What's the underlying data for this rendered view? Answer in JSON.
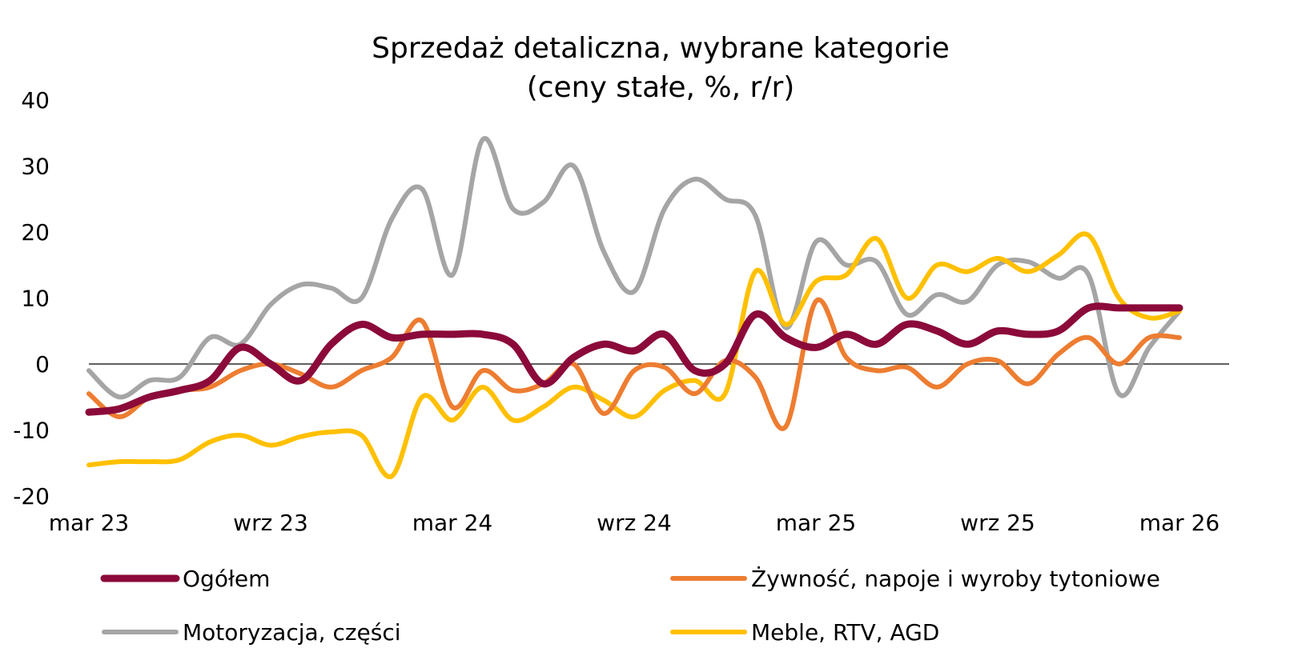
{
  "chart_data": {
    "type": "line",
    "title": "Sprzedaż detaliczna, wybrane kategorie",
    "subtitle": "(ceny stałe, %, r/r)",
    "xlabel": "",
    "ylabel": "",
    "ylim": [
      -20,
      40
    ],
    "y_ticks": [
      40,
      30,
      20,
      10,
      0,
      -10,
      -20
    ],
    "y_tick_labels": [
      "40",
      "30",
      "20",
      "10",
      "0",
      "-10",
      "-20"
    ],
    "x_tick_labels": [
      "mar 23",
      "wrz 23",
      "mar 24",
      "wrz 24",
      "mar 25",
      "wrz 25",
      "mar 26"
    ],
    "x_tick_indices": [
      0,
      6,
      12,
      18,
      24,
      30,
      36
    ],
    "grid": false,
    "legend_position": "bottom",
    "categories": [
      "mar 23",
      "kwi 23",
      "maj 23",
      "cze 23",
      "lip 23",
      "sie 23",
      "wrz 23",
      "paź 23",
      "lis 23",
      "gru 23",
      "sty 24",
      "lut 24",
      "mar 24",
      "kwi 24",
      "maj 24",
      "cze 24",
      "lip 24",
      "sie 24",
      "wrz 24",
      "paź 24",
      "lis 24",
      "gru 24",
      "sty 25",
      "lut 25",
      "mar 25",
      "kwi 25",
      "maj 25",
      "cze 25",
      "lip 25",
      "sie 25",
      "wrz 25",
      "paź 25",
      "lis 25",
      "gru 25",
      "sty 26",
      "lut 26",
      "mar 26"
    ],
    "series": [
      {
        "name": "Ogółem",
        "color": "#8B0A3A",
        "width": 9,
        "values": [
          -7.3,
          -6.8,
          -5.0,
          -4.0,
          -2.5,
          2.5,
          0.0,
          -2.5,
          3.0,
          6.0,
          4.0,
          4.5,
          4.5,
          4.5,
          3.0,
          -3.0,
          1.0,
          3.0,
          2.0,
          4.5,
          -1.0,
          0.0,
          7.5,
          4.0,
          2.5,
          4.5,
          3.0,
          6.0,
          5.0,
          3.0,
          5.0,
          4.5,
          5.0,
          8.5,
          8.5,
          8.5,
          8.5
        ]
      },
      {
        "name": "Żywność, napoje i wyroby tytoniowe",
        "color": "#ED7D31",
        "width": 6,
        "values": [
          -4.5,
          -8.0,
          -5.0,
          -4.0,
          -3.5,
          -1.0,
          0.0,
          -1.5,
          -3.5,
          -1.0,
          1.0,
          6.5,
          -6.5,
          -1.0,
          -4.0,
          -3.0,
          0.0,
          -7.5,
          -1.0,
          -0.5,
          -4.5,
          0.5,
          -2.0,
          -9.5,
          9.5,
          1.0,
          -1.0,
          -0.5,
          -3.5,
          0.0,
          0.5,
          -3.0,
          1.5,
          4.0,
          0.0,
          4.0,
          4.0
        ]
      },
      {
        "name": "Motoryzacja, części",
        "color": "#A5A5A5",
        "width": 6,
        "values": [
          -1.0,
          -5.0,
          -2.5,
          -2.0,
          4.0,
          3.0,
          9.0,
          12.0,
          11.5,
          10.0,
          22.0,
          26.5,
          13.5,
          34.0,
          23.5,
          24.5,
          30.0,
          17.0,
          11.0,
          23.5,
          28.0,
          25.0,
          22.5,
          5.5,
          18.5,
          15.0,
          15.5,
          7.5,
          10.5,
          9.5,
          15.0,
          15.5,
          13.0,
          13.5,
          -4.5,
          2.5,
          8.0
        ]
      },
      {
        "name": "Meble, RTV, AGD",
        "color": "#FFC000",
        "width": 6,
        "values": [
          -15.3,
          -14.8,
          -14.8,
          -14.5,
          -11.8,
          -10.8,
          -12.3,
          -11.0,
          -10.3,
          -10.8,
          -17.0,
          -5.0,
          -8.5,
          -3.5,
          -8.5,
          -6.5,
          -3.5,
          -5.5,
          -8.0,
          -4.0,
          -2.5,
          -4.5,
          14.0,
          6.0,
          12.5,
          13.5,
          19.0,
          10.0,
          15.0,
          14.0,
          16.0,
          14.0,
          16.5,
          19.5,
          10.0,
          7.0,
          8.0
        ]
      }
    ]
  }
}
